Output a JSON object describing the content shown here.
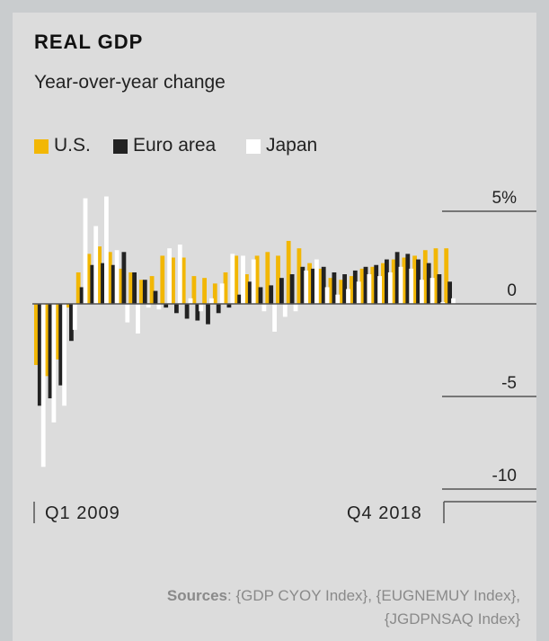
{
  "title": "REAL GDP",
  "subtitle": "Year-over-year change",
  "colors": {
    "us": "#f2b705",
    "euro": "#222222",
    "japan": "#ffffff",
    "axis": "#555555",
    "background": "#dcdcdc"
  },
  "sources": {
    "label": "Sources",
    "line1": ": {GDP CYOY Index}, {EUGNEMUY Index},",
    "line2": "{JGDPNSAQ Index}"
  },
  "chart_data": {
    "type": "bar",
    "title": "REAL GDP",
    "subtitle": "Year-over-year change",
    "ylim": [
      -10,
      5
    ],
    "yticks": [
      5,
      0,
      -5,
      -10
    ],
    "ytick_labels": [
      "5%",
      "0",
      "-5",
      "-10"
    ],
    "xtick_labels": [
      "Q1 2009",
      "Q4 2018"
    ],
    "legend_position": "top-left",
    "grid": false,
    "categories": [
      "Q1 2009",
      "Q2 2009",
      "Q3 2009",
      "Q4 2009",
      "Q1 2010",
      "Q2 2010",
      "Q3 2010",
      "Q4 2010",
      "Q1 2011",
      "Q2 2011",
      "Q3 2011",
      "Q4 2011",
      "Q1 2012",
      "Q2 2012",
      "Q3 2012",
      "Q4 2012",
      "Q1 2013",
      "Q2 2013",
      "Q3 2013",
      "Q4 2013",
      "Q1 2014",
      "Q2 2014",
      "Q3 2014",
      "Q4 2014",
      "Q1 2015",
      "Q2 2015",
      "Q3 2015",
      "Q4 2015",
      "Q1 2016",
      "Q2 2016",
      "Q3 2016",
      "Q4 2016",
      "Q1 2017",
      "Q2 2017",
      "Q3 2017",
      "Q4 2017",
      "Q1 2018",
      "Q2 2018",
      "Q3 2018",
      "Q4 2018"
    ],
    "series": [
      {
        "name": "U.S.",
        "key": "us",
        "values": [
          -3.3,
          -3.9,
          -3.0,
          -0.2,
          1.7,
          2.7,
          3.1,
          2.8,
          1.9,
          1.7,
          1.3,
          1.5,
          2.6,
          2.5,
          2.5,
          1.5,
          1.4,
          1.1,
          1.7,
          2.6,
          1.6,
          2.6,
          2.8,
          2.6,
          3.4,
          3.0,
          2.2,
          1.9,
          1.4,
          1.3,
          1.5,
          1.9,
          2.0,
          2.2,
          2.4,
          2.5,
          2.6,
          2.9,
          3.0,
          3.0
        ]
      },
      {
        "name": "Euro area",
        "key": "euro",
        "values": [
          -5.5,
          -5.1,
          -4.4,
          -2.0,
          0.9,
          2.1,
          2.2,
          2.1,
          2.8,
          1.7,
          1.3,
          0.7,
          -0.2,
          -0.5,
          -0.8,
          -0.9,
          -1.1,
          -0.5,
          -0.2,
          0.5,
          1.2,
          0.9,
          1.0,
          1.4,
          1.6,
          2.0,
          1.9,
          2.0,
          1.7,
          1.6,
          1.8,
          2.0,
          2.1,
          2.4,
          2.8,
          2.7,
          2.4,
          2.2,
          1.6,
          1.2
        ]
      },
      {
        "name": "Japan",
        "key": "japan",
        "values": [
          -8.8,
          -6.4,
          -5.5,
          -1.4,
          5.7,
          4.2,
          5.8,
          2.9,
          -1.0,
          -1.6,
          -0.2,
          -0.3,
          3.0,
          3.2,
          0.3,
          -0.4,
          0.3,
          1.1,
          2.7,
          2.6,
          2.4,
          -0.4,
          -1.5,
          -0.7,
          -0.4,
          1.8,
          2.4,
          0.9,
          0.5,
          0.8,
          1.2,
          1.6,
          1.5,
          1.7,
          2.0,
          1.9,
          1.3,
          1.4,
          0.1,
          0.3
        ]
      }
    ]
  }
}
